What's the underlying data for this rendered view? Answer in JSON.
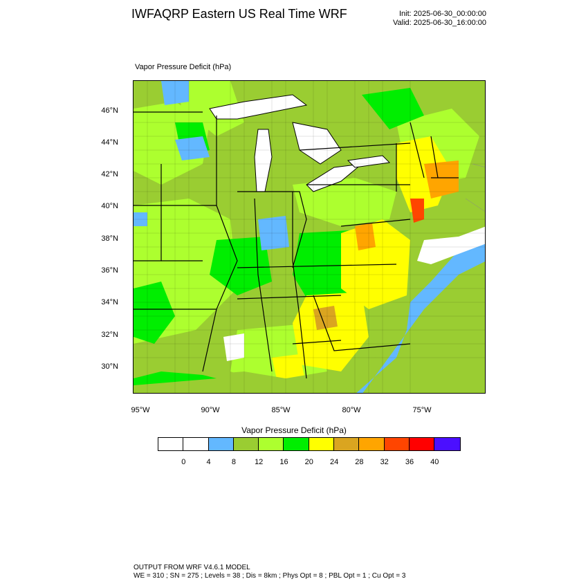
{
  "header": {
    "title": "IWFAQRP Eastern US Real Time WRF",
    "init": "Init: 2025-06-30_00:00:00",
    "valid": "Valid: 2025-06-30_16:00:00"
  },
  "map": {
    "field_label": "Vapor Pressure Deficit   (hPa)",
    "lat_labels": [
      "46°N",
      "44°N",
      "42°N",
      "40°N",
      "38°N",
      "36°N",
      "34°N",
      "32°N",
      "30°N"
    ],
    "lon_labels": [
      "95°W",
      "90°W",
      "85°W",
      "80°W",
      "75°W"
    ],
    "colors": {
      "land_main": "#9acd32",
      "light_green": "#adff2f",
      "green": "#00ee00",
      "yellow": "#ffff00",
      "gold": "#daa520",
      "orange": "#ffa500",
      "blue": "#63b8ff",
      "water": "#ffffff"
    }
  },
  "colorbar": {
    "title": "Vapor Pressure Deficit  (hPa)",
    "colors": [
      "#ffffff",
      "#ffffff",
      "#63b8ff",
      "#9acd32",
      "#adff2f",
      "#00ee00",
      "#ffff00",
      "#daa520",
      "#ffa500",
      "#ff4500",
      "#ff0000",
      "#4b0fff"
    ],
    "ticks": [
      "0",
      "4",
      "8",
      "12",
      "16",
      "20",
      "24",
      "28",
      "32",
      "36",
      "40"
    ]
  },
  "footer": {
    "line1": "OUTPUT FROM WRF V4.6.1 MODEL",
    "line2": "WE = 310 ; SN = 275 ; Levels = 38 ; Dis = 8km ; Phys Opt = 8 ; PBL Opt = 1 ; Cu Opt = 3"
  }
}
